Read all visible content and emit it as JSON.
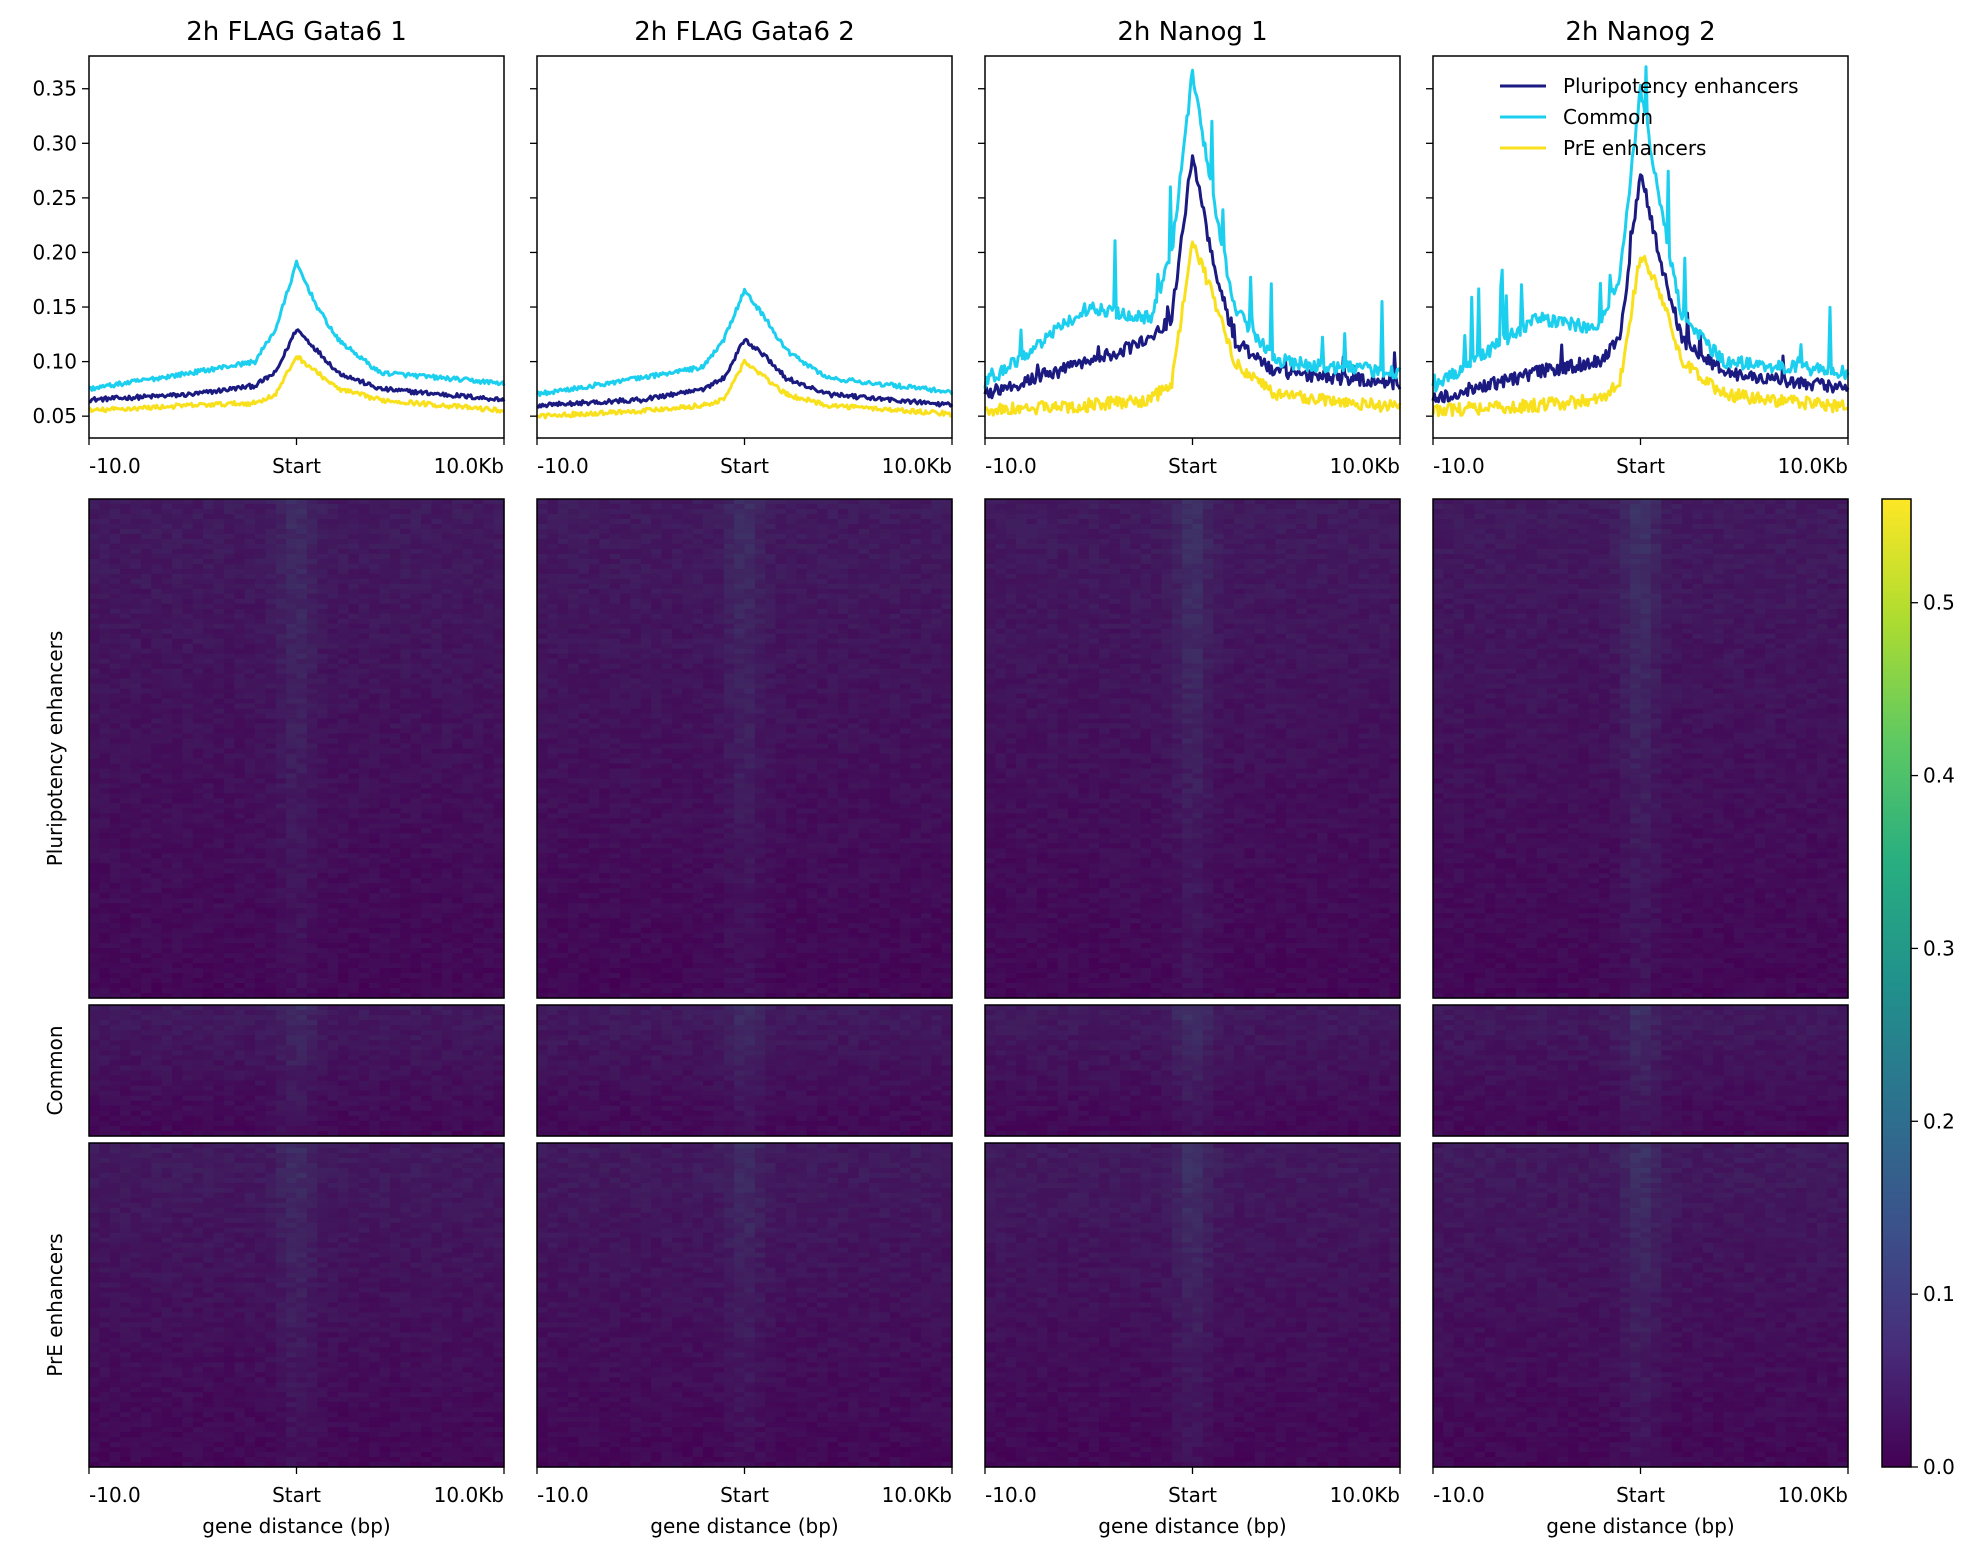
{
  "chart_data": {
    "type": "heatmap",
    "panels": [
      {
        "title": "2h FLAG Gata6 1"
      },
      {
        "title": "2h FLAG Gata6 2"
      },
      {
        "title": "2h Nanog 1"
      },
      {
        "title": "2h Nanog 2"
      }
    ],
    "x_ticks": [
      "-10.0",
      "Start",
      "10.0Kb"
    ],
    "xlabel": "gene distance (bp)",
    "profile": {
      "type": "line",
      "ylim": [
        0.03,
        0.38
      ],
      "yticks": [
        0.05,
        0.1,
        0.15,
        0.2,
        0.25,
        0.3,
        0.35
      ],
      "ytick_labels": [
        "0.05",
        "0.10",
        "0.15",
        "0.20",
        "0.25",
        "0.30",
        "0.35"
      ],
      "legend_position": "top-right of last panel",
      "series": [
        {
          "name": "Pluripotency enhancers",
          "color": "#1a1a80",
          "x": [
            -10,
            -5,
            -2,
            -1,
            0,
            1,
            2,
            4,
            10
          ],
          "values_by_panel": [
            [
              0.065,
              0.07,
              0.078,
              0.09,
              0.13,
              0.11,
              0.09,
              0.075,
              0.065
            ],
            [
              0.06,
              0.065,
              0.075,
              0.085,
              0.12,
              0.105,
              0.085,
              0.07,
              0.06
            ],
            [
              0.07,
              0.1,
              0.12,
              0.14,
              0.29,
              0.19,
              0.12,
              0.09,
              0.08
            ],
            [
              0.065,
              0.09,
              0.1,
              0.12,
              0.275,
              0.19,
              0.12,
              0.09,
              0.075
            ]
          ]
        },
        {
          "name": "Common",
          "color": "#1ccfef",
          "x": [
            -10,
            -5,
            -2,
            -1,
            0,
            1,
            2,
            4,
            10
          ],
          "values_by_panel": [
            [
              0.075,
              0.09,
              0.1,
              0.13,
              0.19,
              0.15,
              0.12,
              0.09,
              0.08
            ],
            [
              0.07,
              0.085,
              0.095,
              0.12,
              0.165,
              0.14,
              0.11,
              0.085,
              0.072
            ],
            [
              0.08,
              0.15,
              0.14,
              0.2,
              0.365,
              0.25,
              0.15,
              0.1,
              0.09
            ],
            [
              0.075,
              0.14,
              0.13,
              0.18,
              0.35,
              0.24,
              0.14,
              0.1,
              0.09
            ]
          ]
        },
        {
          "name": "PrE enhancers",
          "color": "#f9e01c",
          "x": [
            -10,
            -5,
            -2,
            -1,
            0,
            1,
            2,
            4,
            10
          ],
          "values_by_panel": [
            [
              0.055,
              0.06,
              0.062,
              0.07,
              0.105,
              0.09,
              0.075,
              0.065,
              0.055
            ],
            [
              0.05,
              0.055,
              0.06,
              0.065,
              0.1,
              0.085,
              0.07,
              0.06,
              0.052
            ],
            [
              0.055,
              0.06,
              0.065,
              0.08,
              0.21,
              0.16,
              0.1,
              0.07,
              0.058
            ],
            [
              0.055,
              0.06,
              0.065,
              0.08,
              0.2,
              0.16,
              0.1,
              0.07,
              0.058
            ]
          ]
        }
      ]
    },
    "heatmap": {
      "groups": [
        {
          "label": "Pluripotency enhancers",
          "rows": 300
        },
        {
          "label": "Common",
          "rows": 80
        },
        {
          "label": "PrE enhancers",
          "rows": 195
        }
      ],
      "colorscale": "viridis",
      "colorbar_range": [
        0.0,
        0.56
      ],
      "colorbar_ticks": [
        0.0,
        0.1,
        0.2,
        0.3,
        0.4,
        0.5
      ],
      "colorbar_tick_labels": [
        "0.0",
        "0.1",
        "0.2",
        "0.3",
        "0.4",
        "0.5"
      ]
    }
  }
}
